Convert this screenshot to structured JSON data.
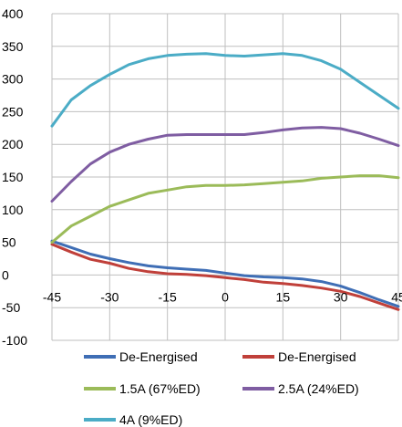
{
  "chart_data": {
    "type": "line",
    "xlim": [
      -45,
      45
    ],
    "ylim": [
      -100,
      400
    ],
    "x_ticks": [
      -45,
      -30,
      -15,
      0,
      15,
      30,
      45
    ],
    "y_ticks": [
      -100,
      -50,
      0,
      50,
      100,
      150,
      200,
      250,
      300,
      350,
      400
    ],
    "grid": "horizontal and vertical",
    "legend_position": "bottom",
    "series": [
      {
        "name": "De-Energised",
        "color": "#3F6EB5",
        "x": [
          -45,
          -40,
          -35,
          -30,
          -25,
          -20,
          -15,
          -10,
          -5,
          0,
          5,
          10,
          15,
          20,
          25,
          30,
          35,
          40,
          45
        ],
        "y": [
          52,
          42,
          32,
          25,
          19,
          14,
          11,
          9,
          7,
          3,
          -1,
          -3,
          -4,
          -6,
          -10,
          -17,
          -27,
          -38,
          -48
        ]
      },
      {
        "name": "De-Energised",
        "color": "#C0403A",
        "x": [
          -45,
          -40,
          -35,
          -30,
          -25,
          -20,
          -15,
          -10,
          -5,
          0,
          5,
          10,
          15,
          20,
          25,
          30,
          35,
          40,
          45
        ],
        "y": [
          47,
          35,
          24,
          18,
          10,
          5,
          2,
          1,
          -1,
          -4,
          -7,
          -11,
          -13,
          -16,
          -20,
          -25,
          -33,
          -43,
          -53
        ]
      },
      {
        "name": "1.5A (67%ED)",
        "color": "#9BBB59",
        "x": [
          -45,
          -40,
          -35,
          -30,
          -25,
          -20,
          -15,
          -10,
          -5,
          0,
          5,
          10,
          15,
          20,
          25,
          30,
          35,
          40,
          45
        ],
        "y": [
          50,
          75,
          90,
          105,
          115,
          125,
          130,
          135,
          137,
          137,
          138,
          140,
          142,
          144,
          148,
          150,
          152,
          152,
          149
        ]
      },
      {
        "name": "2.5A (24%ED)",
        "color": "#7F5DA2",
        "x": [
          -45,
          -40,
          -35,
          -30,
          -25,
          -20,
          -15,
          -10,
          -5,
          0,
          5,
          10,
          15,
          20,
          25,
          30,
          35,
          40,
          45
        ],
        "y": [
          113,
          143,
          170,
          188,
          200,
          208,
          214,
          215,
          215,
          215,
          215,
          218,
          222,
          225,
          226,
          224,
          217,
          208,
          198
        ]
      },
      {
        "name": "4A (9%ED)",
        "color": "#4BACC6",
        "x": [
          -45,
          -40,
          -35,
          -30,
          -25,
          -20,
          -15,
          -10,
          -5,
          0,
          5,
          10,
          15,
          20,
          25,
          30,
          35,
          40,
          45
        ],
        "y": [
          228,
          268,
          290,
          307,
          322,
          331,
          336,
          338,
          339,
          336,
          335,
          337,
          339,
          336,
          328,
          315,
          295,
          275,
          255
        ]
      }
    ]
  }
}
